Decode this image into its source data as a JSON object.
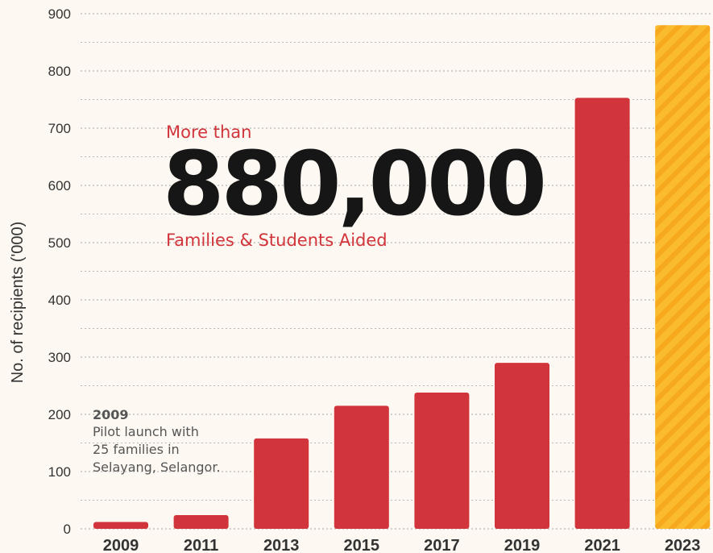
{
  "chart_data": {
    "type": "bar",
    "categories": [
      "2009",
      "2011",
      "2013",
      "2015",
      "2017",
      "2019",
      "2021",
      "2023"
    ],
    "values": [
      12,
      24,
      158,
      215,
      238,
      290,
      753,
      880
    ],
    "ylabel": "No. of recipients  ('000)",
    "ylim": [
      0,
      900
    ],
    "yticks": [
      0,
      100,
      200,
      300,
      400,
      500,
      600,
      700,
      800,
      900
    ],
    "grid": true,
    "colors": {
      "bar": "#d1343a",
      "highlight_bar": "#fbbb2e",
      "highlight_stripe": "#f5a81c"
    },
    "highlight_category": "2023"
  },
  "headline": {
    "pre": "More than",
    "number": "880,000",
    "post": "Families & Students Aided"
  },
  "annotation": {
    "year": "2009",
    "lines": [
      "Pilot launch with",
      "25 families in",
      "Selayang, Selangor."
    ]
  }
}
